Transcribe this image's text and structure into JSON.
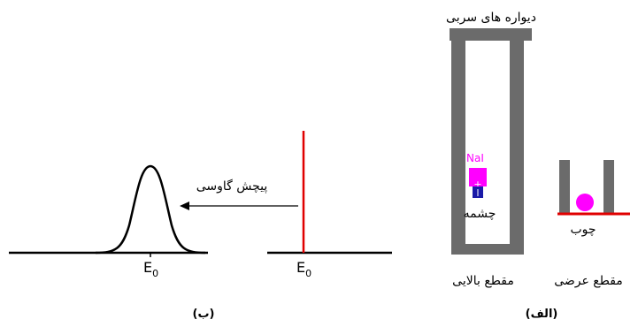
{
  "left_panel": {
    "caption": "(ب)",
    "arrow_label": "پیچش گاوسی",
    "peak_label_left": "E",
    "peak_label_left_sub": "0",
    "peak_label_right": "E",
    "peak_label_right_sub": "0"
  },
  "right_panel": {
    "caption": "(الف)",
    "lead_walls_label": "دیواره های سربی",
    "detector_label": "NaI",
    "source_label": "چشمه",
    "wood_label": "چوب",
    "top_view_label": "مقطع بالایی",
    "cross_section_label": "مقطع عرضی"
  },
  "colors": {
    "lead_gray": "#6b6b6b",
    "detector_magenta": "#ff00ff",
    "source_blue": "#1a1aa8",
    "red_line": "#e00000",
    "ink": "#000000"
  }
}
